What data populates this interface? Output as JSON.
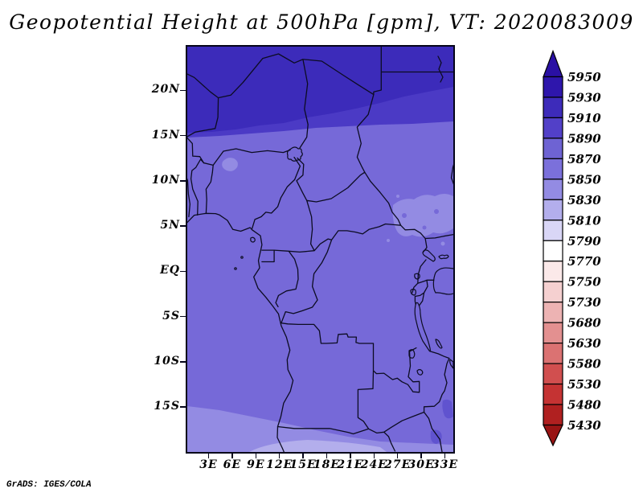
{
  "title": "Geopotential Height at 500hPa [gpm], VT: 2020083009",
  "footer_credit": "GrADS: IGES/COLA",
  "axes": {
    "lat_ticks": [
      "20N",
      "15N",
      "10N",
      "5N",
      "EQ",
      "5S",
      "10S",
      "15S"
    ],
    "lon_ticks": [
      "3E",
      "6E",
      "9E",
      "12E",
      "15E",
      "18E",
      "21E",
      "24E",
      "27E",
      "30E",
      "33E"
    ]
  },
  "colorbar": {
    "levels": [
      "5950",
      "5930",
      "5910",
      "5890",
      "5870",
      "5850",
      "5830",
      "5810",
      "5790",
      "5770",
      "5750",
      "5730",
      "5680",
      "5630",
      "5580",
      "5530",
      "5480",
      "5430"
    ],
    "segment_colors": [
      "#2e16ac",
      "#3d2bba",
      "#5240c8",
      "#6e63d3",
      "#7b70db",
      "#938be3",
      "#b3aeec",
      "#d9d6f6",
      "#ffffff",
      "#fbe9e9",
      "#f5d0d0",
      "#edb3b3",
      "#e39090",
      "#db7272",
      "#d14f4f",
      "#c53333",
      "#b02020"
    ],
    "arrow_top_color": "#2a10a4",
    "arrow_bottom_color": "#991414"
  },
  "map_colors": {
    "band-dark": "#3c2bba",
    "band-medium": "#4b3ac5",
    "band-main": "#7669d8",
    "band-light": "#938be3",
    "band-lighter": "#b3aeec",
    "band-mediumdark": "#6053cf",
    "border-line": "#0c0c22"
  },
  "chart_data": {
    "type": "heatmap",
    "title": "Geopotential Height at 500hPa [gpm], VT: 2020083009",
    "variable": "Geopotential Height",
    "pressure_level": "500hPa",
    "units": "gpm",
    "valid_time": "2020083009",
    "x_ticks": [
      "3E",
      "6E",
      "9E",
      "12E",
      "15E",
      "18E",
      "21E",
      "24E",
      "27E",
      "30E",
      "33E"
    ],
    "y_ticks": [
      "20N",
      "15N",
      "10N",
      "5N",
      "EQ",
      "5S",
      "10S",
      "15S"
    ],
    "lon_range_deg_east": [
      0,
      34
    ],
    "lat_range_deg": [
      -20,
      25
    ],
    "contour_levels_gpm": [
      5430,
      5480,
      5530,
      5580,
      5630,
      5680,
      5730,
      5750,
      5770,
      5790,
      5810,
      5830,
      5850,
      5870,
      5890,
      5910,
      5930,
      5950
    ],
    "level_colors_low_to_high": [
      "#b02020",
      "#c53333",
      "#d14f4f",
      "#db7272",
      "#e39090",
      "#edb3b3",
      "#f5d0d0",
      "#fbe9e9",
      "#ffffff",
      "#d9d6f6",
      "#b3aeec",
      "#938be3",
      "#7b70db",
      "#6e63d3",
      "#5240c8",
      "#3d2bba",
      "#2e16ac"
    ],
    "field_bands": [
      {
        "region": "north of ~19N",
        "value_gpm": "5910-5930"
      },
      {
        "region": "~16N to ~19N",
        "value_gpm": "5890-5910"
      },
      {
        "region": "~15S to ~16N (most of domain)",
        "value_gpm": "5850-5870"
      },
      {
        "region": "southwest corner below ~15S",
        "value_gpm": "5830-5850"
      },
      {
        "region": "bottom edge near 18-20S",
        "value_gpm": "5810-5830"
      }
    ],
    "legend_position": "right",
    "grid": false,
    "source_label": "GrADS: IGES/COLA"
  }
}
